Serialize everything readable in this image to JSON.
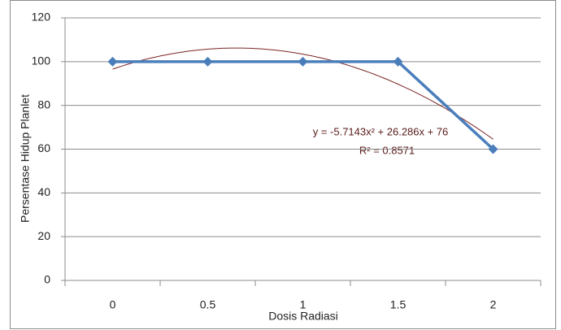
{
  "chart_data": {
    "type": "line",
    "x_label": "Dosis Radiasi",
    "y_label": "Persentase Hidup Planlet",
    "categories": [
      "0",
      "0.5",
      "1",
      "1.5",
      "2"
    ],
    "values": [
      100,
      100,
      100,
      100,
      60
    ],
    "color": "#4a7ebb",
    "ylim": [
      0,
      120
    ],
    "yticks": [
      0,
      20,
      40,
      60,
      80,
      100,
      120
    ],
    "grid": true,
    "trendline": {
      "color": "#7b2323",
      "equation": "y = -5.7143x² + 26.286x + 76",
      "r_squared": "R² = 0.8571"
    }
  }
}
